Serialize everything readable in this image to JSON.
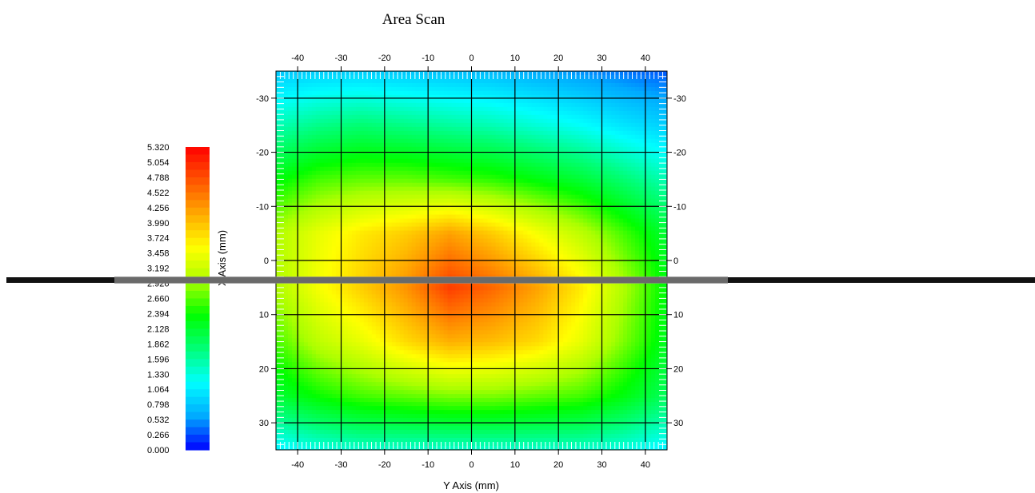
{
  "chart_data": {
    "type": "heatmap",
    "title": "Area Scan",
    "xlabel": "Y Axis (mm)",
    "ylabel": "X Axis (mm)",
    "x_range": [
      -45,
      45
    ],
    "y_range": [
      -35,
      35
    ],
    "x_ticks": [
      -40,
      -30,
      -20,
      -10,
      0,
      10,
      20,
      30,
      40
    ],
    "y_ticks": [
      -30,
      -20,
      -10,
      0,
      10,
      20,
      30
    ],
    "y_inverted": true,
    "grid": true,
    "colorbar": {
      "min": 0,
      "max": 5.32,
      "labels": [
        "5.320",
        "5.054",
        "4.788",
        "4.522",
        "4.256",
        "3.990",
        "3.724",
        "3.458",
        "3.192",
        "2.926",
        "2.660",
        "2.394",
        "2.128",
        "1.862",
        "1.596",
        "1.330",
        "1.064",
        "0.798",
        "0.532",
        "0.266",
        "0.000"
      ],
      "placement": "left"
    },
    "colormap": [
      "#0000ff",
      "#00aaff",
      "#00ffff",
      "#00ff77",
      "#00ff00",
      "#aaff00",
      "#ffff00",
      "#ffaa00",
      "#ff5500",
      "#ff0000"
    ],
    "x": [
      -45,
      -35,
      -25,
      -15,
      -5,
      5,
      15,
      25,
      35,
      45
    ],
    "y": [
      -35,
      -25,
      -15,
      -5,
      5,
      15,
      25,
      35
    ],
    "values": [
      [
        0.8,
        0.85,
        0.85,
        0.8,
        0.75,
        0.7,
        0.6,
        0.5,
        0.4,
        0.3
      ],
      [
        1.5,
        1.7,
        1.8,
        1.7,
        1.6,
        1.5,
        1.35,
        1.2,
        1.0,
        0.85
      ],
      [
        2.3,
        2.6,
        2.7,
        2.7,
        2.6,
        2.5,
        2.3,
        2.1,
        1.8,
        1.5
      ],
      [
        3.0,
        3.4,
        3.7,
        3.9,
        4.2,
        3.9,
        3.5,
        3.1,
        2.6,
        2.1
      ],
      [
        3.0,
        3.5,
        3.9,
        4.3,
        4.9,
        4.6,
        4.2,
        3.7,
        3.0,
        2.3
      ],
      [
        2.6,
        3.1,
        3.4,
        3.8,
        4.1,
        4.0,
        3.8,
        3.4,
        2.8,
        2.2
      ],
      [
        2.1,
        2.4,
        2.6,
        2.7,
        2.8,
        2.8,
        2.7,
        2.6,
        2.3,
        1.9
      ],
      [
        1.1,
        1.3,
        1.4,
        1.4,
        1.4,
        1.4,
        1.4,
        1.4,
        1.3,
        1.1
      ]
    ]
  }
}
